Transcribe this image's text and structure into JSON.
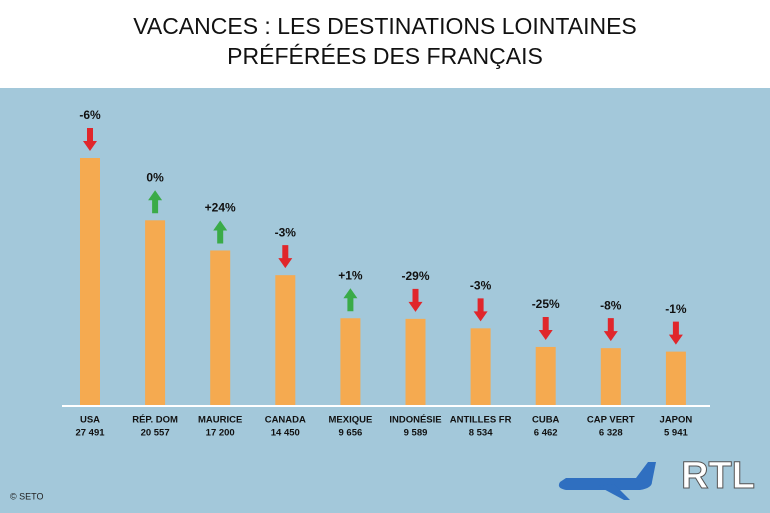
{
  "chart_data": {
    "type": "bar",
    "title": "VACANCES : LES DESTINATIONS LOINTAINES",
    "subtitle": "PRÉFÉRÉES DES FRANÇAIS",
    "categories": [
      "USA",
      "RÉP. DOM",
      "MAURICE",
      "CANADA",
      "MEXIQUE",
      "INDONÉSIE",
      "ANTILLES FR",
      "CUBA",
      "CAP VERT",
      "JAPON"
    ],
    "values": [
      27491,
      20557,
      17200,
      14450,
      9656,
      9589,
      8534,
      6462,
      6328,
      5941
    ],
    "value_labels": [
      "27 491",
      "20 557",
      "17 200",
      "14 450",
      "9 656",
      "9 589",
      "8 534",
      "6 462",
      "6 328",
      "5 941"
    ],
    "changes": [
      -6,
      0,
      24,
      -3,
      1,
      -29,
      -3,
      -25,
      -8,
      -1
    ],
    "change_labels": [
      "-6%",
      "0%",
      "+24%",
      "-3%",
      "+1%",
      "-29%",
      "-3%",
      "-25%",
      "-8%",
      "-1%"
    ],
    "color": "#f5aa50",
    "up_color": "#3aab48",
    "down_color": "#e0262b",
    "credit": "© SETO",
    "logo": "RTL"
  }
}
